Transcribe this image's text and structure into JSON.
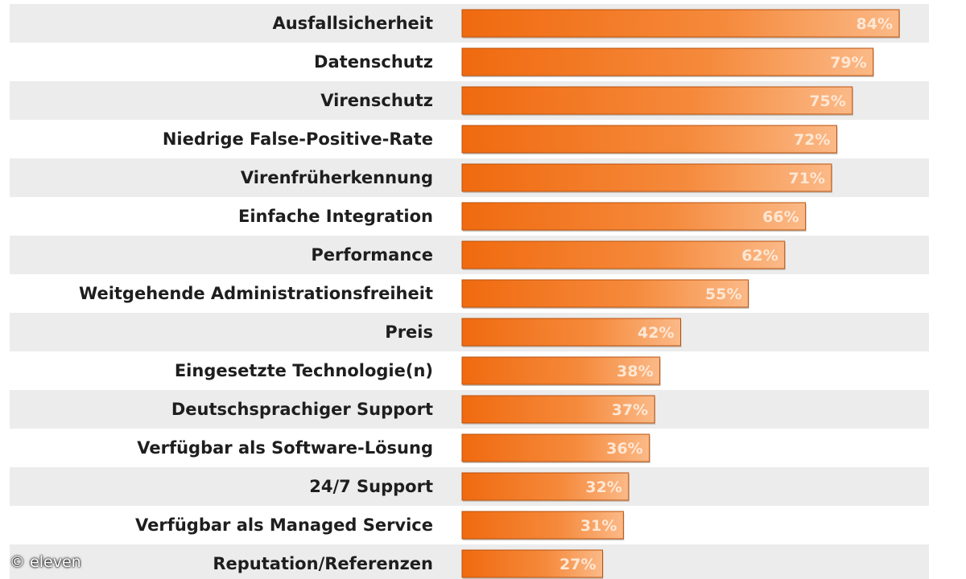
{
  "chart_data": {
    "type": "bar",
    "orientation": "horizontal",
    "categories": [
      "Ausfallsicherheit",
      "Datenschutz",
      "Virenschutz",
      "Niedrige False-Positive-Rate",
      "Virenfrüherkennung",
      "Einfache Integration",
      "Performance",
      "Weitgehende Administrationsfreiheit",
      "Preis",
      "Eingesetzte Technologie(n)",
      "Deutschsprachiger Support",
      "Verfügbar als Software-Lösung",
      "24/7 Support",
      "Verfügbar als Managed Service",
      "Reputation/Referenzen"
    ],
    "values": [
      84,
      79,
      75,
      72,
      71,
      66,
      62,
      55,
      42,
      38,
      37,
      36,
      32,
      31,
      27
    ],
    "value_labels": [
      "84%",
      "79%",
      "75%",
      "72%",
      "71%",
      "66%",
      "62%",
      "55%",
      "42%",
      "38%",
      "37%",
      "36%",
      "32%",
      "31%",
      "27%"
    ],
    "unit": "%",
    "xlim": [
      0,
      100
    ],
    "grid": false,
    "legend": "none"
  },
  "credit": "© eleven",
  "colors": {
    "bar_dark": "#f06a0f",
    "bar_mid": "#f58a3c",
    "bar_light": "#fbb987",
    "bar_edge": "#b9510d",
    "stripe": "#ececec"
  }
}
